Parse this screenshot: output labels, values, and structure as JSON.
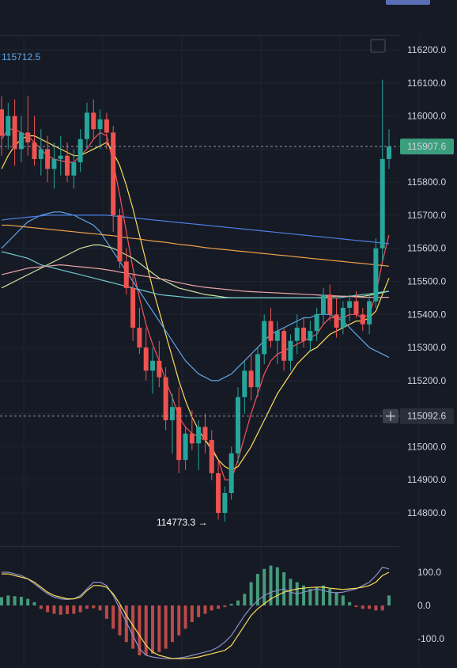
{
  "chart_data": {
    "type": "candlestick",
    "instrument_price_label": "115712.5",
    "price_axis": {
      "ticks": [
        "116200.0",
        "116100.0",
        "116000.0",
        "115900.0",
        "115800.0",
        "115700.0",
        "115600.0",
        "115500.0",
        "115400.0",
        "115300.0",
        "115200.0",
        "115100.0",
        "115000.0",
        "114900.0",
        "114800.0"
      ],
      "range": [
        114740,
        116270
      ]
    },
    "current_price_label": "115907.6",
    "crosshair_price_label": "115092.6",
    "low_marker": {
      "label": "114773.3 →",
      "value": 114773.3
    },
    "candles": [
      [
        116020,
        116060,
        115880,
        115940
      ],
      [
        115940,
        116040,
        115900,
        116000
      ],
      [
        116000,
        116050,
        115850,
        115900
      ],
      [
        115900,
        116000,
        115860,
        115950
      ],
      [
        115950,
        116060,
        115880,
        115920
      ],
      [
        115920,
        116000,
        115850,
        115870
      ],
      [
        115870,
        115960,
        115820,
        115900
      ],
      [
        115900,
        115940,
        115800,
        115840
      ],
      [
        115840,
        115920,
        115780,
        115870
      ],
      [
        115870,
        115940,
        115820,
        115880
      ],
      [
        115880,
        115920,
        115800,
        115820
      ],
      [
        115820,
        115900,
        115780,
        115860
      ],
      [
        115860,
        115960,
        115830,
        115930
      ],
      [
        115930,
        116040,
        115900,
        116010
      ],
      [
        116010,
        116050,
        115930,
        115960
      ],
      [
        115960,
        116020,
        115900,
        115990
      ],
      [
        115990,
        116010,
        115900,
        115950
      ],
      [
        115950,
        115970,
        115650,
        115700
      ],
      [
        115700,
        115720,
        115540,
        115560
      ],
      [
        115560,
        115600,
        115460,
        115480
      ],
      [
        115480,
        115520,
        115320,
        115360
      ],
      [
        115360,
        115420,
        115280,
        115300
      ],
      [
        115300,
        115360,
        115200,
        115230
      ],
      [
        115230,
        115300,
        115160,
        115260
      ],
      [
        115260,
        115320,
        115180,
        115210
      ],
      [
        115210,
        115240,
        115050,
        115080
      ],
      [
        115080,
        115160,
        114980,
        115120
      ],
      [
        115120,
        115180,
        114920,
        114960
      ],
      [
        114960,
        115060,
        114930,
        115040
      ],
      [
        115040,
        115110,
        114990,
        115010
      ],
      [
        115010,
        115080,
        114930,
        115060
      ],
      [
        115060,
        115100,
        114980,
        115020
      ],
      [
        115020,
        115050,
        114900,
        114920
      ],
      [
        114920,
        114960,
        114780,
        114800
      ],
      [
        114800,
        114880,
        114773,
        114860
      ],
      [
        114860,
        115000,
        114840,
        114980
      ],
      [
        114980,
        115180,
        114950,
        115150
      ],
      [
        115150,
        115260,
        115100,
        115230
      ],
      [
        115230,
        115280,
        115140,
        115180
      ],
      [
        115180,
        115300,
        115150,
        115280
      ],
      [
        115280,
        115400,
        115250,
        115380
      ],
      [
        115380,
        115420,
        115300,
        115320
      ],
      [
        115320,
        115380,
        115250,
        115350
      ],
      [
        115350,
        115360,
        115230,
        115260
      ],
      [
        115260,
        115340,
        115230,
        115320
      ],
      [
        115320,
        115400,
        115280,
        115360
      ],
      [
        115360,
        115390,
        115300,
        115320
      ],
      [
        115320,
        115380,
        115290,
        115350
      ],
      [
        115350,
        115420,
        115320,
        115400
      ],
      [
        115400,
        115480,
        115370,
        115460
      ],
      [
        115460,
        115490,
        115380,
        115400
      ],
      [
        115400,
        115450,
        115330,
        115360
      ],
      [
        115360,
        115440,
        115340,
        115420
      ],
      [
        115420,
        115460,
        115380,
        115440
      ],
      [
        115440,
        115470,
        115390,
        115400
      ],
      [
        115400,
        115420,
        115350,
        115370
      ],
      [
        115370,
        115460,
        115340,
        115440
      ],
      [
        115440,
        115630,
        115420,
        115600
      ],
      [
        115600,
        116110,
        115560,
        115870
      ],
      [
        115870,
        115960,
        115840,
        115907.6
      ]
    ],
    "moving_averages": [
      {
        "color": "#f7525f",
        "values": [
          115930,
          115960,
          115960,
          115950,
          115940,
          115920,
          115900,
          115880,
          115870,
          115865,
          115860,
          115860,
          115880,
          115900,
          115930,
          115950,
          115940,
          115860,
          115760,
          115650,
          115540,
          115450,
          115370,
          115310,
          115260,
          115200,
          115150,
          115090,
          115060,
          115040,
          115030,
          115020,
          115000,
          114960,
          114900,
          114900,
          114960,
          115030,
          115100,
          115160,
          115220,
          115260,
          115280,
          115290,
          115300,
          115310,
          115320,
          115330,
          115340,
          115370,
          115390,
          115390,
          115390,
          115400,
          115400,
          115390,
          115400,
          115460,
          115560,
          115640
        ]
      },
      {
        "color": "#fddc5c",
        "values": [
          115840,
          115880,
          115910,
          115930,
          115940,
          115940,
          115930,
          115920,
          115910,
          115900,
          115890,
          115880,
          115880,
          115890,
          115900,
          115910,
          115920,
          115890,
          115850,
          115790,
          115720,
          115640,
          115560,
          115480,
          115410,
          115340,
          115270,
          115200,
          115140,
          115090,
          115050,
          115020,
          114990,
          114960,
          114940,
          114930,
          114940,
          114970,
          115000,
          115040,
          115080,
          115120,
          115160,
          115190,
          115220,
          115250,
          115270,
          115290,
          115300,
          115320,
          115340,
          115350,
          115360,
          115370,
          115380,
          115380,
          115390,
          115410,
          115460,
          115510
        ]
      },
      {
        "color": "#5fa8e8",
        "values": [
          115600,
          115620,
          115640,
          115660,
          115680,
          115690,
          115700,
          115705,
          115710,
          115710,
          115705,
          115700,
          115690,
          115680,
          115670,
          115650,
          115620,
          115590,
          115560,
          115530,
          115500,
          115470,
          115440,
          115410,
          115380,
          115350,
          115320,
          115290,
          115260,
          115240,
          115220,
          115210,
          115200,
          115200,
          115210,
          115220,
          115240,
          115260,
          115280,
          115300,
          115320,
          115340,
          115350,
          115360,
          115370,
          115380,
          115390,
          115390,
          115400,
          115400,
          115400,
          115390,
          115380,
          115360,
          115340,
          115320,
          115300,
          115290,
          115280,
          115270
        ]
      },
      {
        "color": "#c8e6a0",
        "values": [
          115480,
          115490,
          115500,
          115510,
          115520,
          115530,
          115540,
          115550,
          115560,
          115570,
          115580,
          115590,
          115600,
          115605,
          115610,
          115610,
          115605,
          115600,
          115590,
          115580,
          115570,
          115555,
          115540,
          115525,
          115510,
          115500,
          115490,
          115480,
          115475,
          115470,
          115465,
          115460,
          115458,
          115455,
          115452,
          115450,
          115450,
          115450,
          115450,
          115450,
          115450,
          115450,
          115450,
          115450,
          115450,
          115450,
          115450,
          115450,
          115450,
          115452,
          115455,
          115455,
          115455,
          115455,
          115455,
          115455,
          115458,
          115462,
          115466,
          115470
        ]
      },
      {
        "color": "#6fc9cf",
        "values": [
          115590,
          115585,
          115580,
          115575,
          115570,
          115560,
          115550,
          115545,
          115540,
          115535,
          115530,
          115525,
          115520,
          115515,
          115510,
          115505,
          115500,
          115495,
          115490,
          115485,
          115480,
          115475,
          115470,
          115465,
          115460,
          115458,
          115456,
          115454,
          115452,
          115450,
          115450,
          115450,
          115450,
          115450,
          115450,
          115450,
          115450,
          115450,
          115450,
          115450,
          115450,
          115450,
          115450,
          115450,
          115450,
          115450,
          115450,
          115450,
          115450,
          115450,
          115450,
          115450,
          115452,
          115455,
          115458,
          115460,
          115462,
          115465,
          115468,
          115470
        ]
      },
      {
        "color": "#e8a6a6",
        "values": [
          115520,
          115525,
          115530,
          115535,
          115540,
          115542,
          115544,
          115546,
          115548,
          115550,
          115548,
          115546,
          115544,
          115542,
          115540,
          115538,
          115535,
          115532,
          115528,
          115525,
          115522,
          115518,
          115515,
          115512,
          115508,
          115505,
          115500,
          115496,
          115492,
          115488,
          115485,
          115482,
          115480,
          115478,
          115476,
          115474,
          115472,
          115470,
          115469,
          115468,
          115467,
          115466,
          115465,
          115464,
          115463,
          115462,
          115461,
          115460,
          115459,
          115458,
          115457,
          115456,
          115455,
          115454,
          115453,
          115452,
          115452,
          115452,
          115452,
          115452
        ]
      },
      {
        "color": "#f0a04b",
        "values": [
          115670,
          115670,
          115668,
          115666,
          115664,
          115662,
          115660,
          115658,
          115656,
          115654,
          115652,
          115650,
          115648,
          115646,
          115644,
          115642,
          115640,
          115638,
          115635,
          115632,
          115630,
          115628,
          115625,
          115622,
          115620,
          115618,
          115615,
          115612,
          115610,
          115608,
          115605,
          115602,
          115600,
          115598,
          115596,
          115594,
          115592,
          115590,
          115588,
          115586,
          115584,
          115582,
          115580,
          115578,
          115576,
          115574,
          115572,
          115570,
          115568,
          115566,
          115564,
          115562,
          115560,
          115558,
          115556,
          115554,
          115552,
          115550,
          115548,
          115546
        ]
      },
      {
        "color": "#4c7fe0",
        "values": [
          115685,
          115688,
          115690,
          115692,
          115694,
          115696,
          115698,
          115700,
          115700,
          115700,
          115700,
          115700,
          115700,
          115700,
          115700,
          115700,
          115700,
          115698,
          115696,
          115694,
          115692,
          115690,
          115688,
          115686,
          115684,
          115682,
          115680,
          115678,
          115676,
          115674,
          115672,
          115670,
          115668,
          115666,
          115664,
          115662,
          115660,
          115658,
          115656,
          115654,
          115652,
          115650,
          115648,
          115646,
          115644,
          115642,
          115640,
          115638,
          115636,
          115634,
          115632,
          115630,
          115628,
          115626,
          115624,
          115622,
          115620,
          115618,
          115616,
          115614
        ]
      }
    ],
    "oscillator": {
      "ticks": [
        "100.0",
        "0.0",
        "-100.0"
      ],
      "range": [
        -160,
        140
      ],
      "histogram": [
        25,
        30,
        28,
        26,
        20,
        10,
        -10,
        -20,
        -25,
        -28,
        -26,
        -25,
        -20,
        -10,
        -8,
        -15,
        -40,
        -70,
        -90,
        -110,
        -130,
        -150,
        -150,
        -145,
        -140,
        -130,
        -110,
        -90,
        -70,
        -50,
        -35,
        -25,
        -15,
        -10,
        -5,
        5,
        15,
        35,
        70,
        95,
        110,
        120,
        115,
        100,
        80,
        70,
        60,
        50,
        55,
        60,
        50,
        40,
        30,
        10,
        -5,
        -10,
        -10,
        -15,
        -15,
        30
      ],
      "line_fast": [
        95,
        95,
        90,
        85,
        80,
        70,
        55,
        40,
        30,
        25,
        20,
        20,
        25,
        45,
        60,
        60,
        55,
        35,
        5,
        -30,
        -60,
        -90,
        -120,
        -140,
        -150,
        -155,
        -160,
        -160,
        -160,
        -158,
        -155,
        -150,
        -145,
        -140,
        -135,
        -120,
        -90,
        -60,
        -30,
        -10,
        5,
        20,
        30,
        40,
        45,
        50,
        52,
        54,
        55,
        55,
        52,
        50,
        48,
        50,
        52,
        55,
        60,
        70,
        90,
        100
      ],
      "line_slow": [
        100,
        100,
        95,
        90,
        80,
        65,
        50,
        35,
        25,
        20,
        18,
        20,
        30,
        50,
        70,
        70,
        60,
        30,
        -10,
        -50,
        -90,
        -130,
        -150,
        -155,
        -158,
        -160,
        -160,
        -158,
        -155,
        -150,
        -145,
        -140,
        -135,
        -125,
        -110,
        -90,
        -60,
        -30,
        -5,
        15,
        30,
        40,
        45,
        50,
        40,
        35,
        40,
        45,
        50,
        45,
        40,
        38,
        40,
        45,
        50,
        60,
        70,
        90,
        115,
        110
      ]
    }
  },
  "colors": {
    "background": "#161a25",
    "grid": "#1f2433",
    "up": "#26a69a",
    "down": "#ef5350",
    "current_label_bg": "#3b9e7d",
    "crosshair": "#9598a1"
  }
}
